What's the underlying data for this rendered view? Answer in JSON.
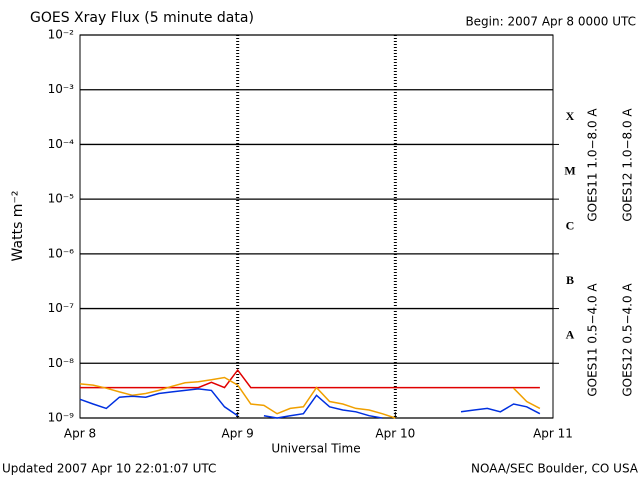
{
  "chart_data": {
    "type": "line",
    "title": "GOES Xray Flux (5 minute data)",
    "subtitle": "Begin:  2007 Apr 8 0000 UTC",
    "xlabel": "Universal Time",
    "ylabel": "Watts m⁻²",
    "footer_left": "Updated 2007 Apr 10 22:01:07 UTC",
    "footer_right": "NOAA/SEC Boulder, CO USA",
    "log_y": true,
    "grid": true,
    "xlim": [
      0,
      72
    ],
    "xticks": [
      {
        "value": 0,
        "label": "Apr 8"
      },
      {
        "value": 24,
        "label": "Apr 9"
      },
      {
        "value": 48,
        "label": "Apr 10"
      },
      {
        "value": 72,
        "label": "Apr 11"
      }
    ],
    "ylim": [
      1e-09,
      0.01
    ],
    "yticks": [
      {
        "value": 1e-09,
        "label": "10⁻⁹"
      },
      {
        "value": 1e-08,
        "label": "10⁻⁸"
      },
      {
        "value": 1e-07,
        "label": "10⁻⁷"
      },
      {
        "value": 1e-06,
        "label": "10⁻⁶"
      },
      {
        "value": 1e-05,
        "label": "10⁻⁵"
      },
      {
        "value": 0.0001,
        "label": "10⁻⁴"
      },
      {
        "value": 0.001,
        "label": "10⁻³"
      },
      {
        "value": 0.01,
        "label": "10⁻²"
      }
    ],
    "class_labels": [
      {
        "value": 1e-08,
        "label": "A"
      },
      {
        "value": 1e-07,
        "label": "B"
      },
      {
        "value": 1e-06,
        "label": "C"
      },
      {
        "value": 1e-05,
        "label": "M"
      },
      {
        "value": 0.0001,
        "label": "X"
      }
    ],
    "x": [
      0,
      2,
      4,
      6,
      8,
      10,
      12,
      14,
      16,
      18,
      20,
      22,
      24,
      26,
      28,
      30,
      32,
      34,
      36,
      38,
      40,
      42,
      44,
      46,
      48,
      50,
      52,
      54,
      56,
      58,
      60,
      62,
      64,
      66,
      68,
      70,
      72
    ],
    "series": [
      {
        "name": "GOES11 1.0−8.0 A",
        "color": "#8030c0",
        "values": [
          null,
          null,
          null,
          null,
          null,
          null,
          null,
          null,
          null,
          null,
          null,
          null,
          null,
          null,
          null,
          null,
          null,
          null,
          null,
          null,
          null,
          null,
          null,
          null,
          null,
          null,
          null,
          null,
          null,
          null,
          null,
          null,
          null,
          null,
          null,
          null,
          null
        ]
      },
      {
        "name": "GOES12 1.0−8.0 A",
        "color": "#e00000",
        "values": [
          3.6e-09,
          3.6e-09,
          3.6e-09,
          3.6e-09,
          3.6e-09,
          3.6e-09,
          3.6e-09,
          3.6e-09,
          3.6e-09,
          3.6e-09,
          4.5e-09,
          3.6e-09,
          7.5e-09,
          3.6e-09,
          3.6e-09,
          3.6e-09,
          3.6e-09,
          3.6e-09,
          3.6e-09,
          3.6e-09,
          3.6e-09,
          3.6e-09,
          3.6e-09,
          3.6e-09,
          3.6e-09,
          3.6e-09,
          3.6e-09,
          3.6e-09,
          3.6e-09,
          3.6e-09,
          3.6e-09,
          3.6e-09,
          3.6e-09,
          3.6e-09,
          3.6e-09,
          3.6e-09,
          null
        ]
      },
      {
        "name": "GOES11 0.5−4.0 A",
        "color": "#f0a000",
        "values": [
          4.2e-09,
          4e-09,
          3.5e-09,
          3e-09,
          2.6e-09,
          2.8e-09,
          3.2e-09,
          3.8e-09,
          4.4e-09,
          4.6e-09,
          5e-09,
          5.5e-09,
          4e-09,
          1.8e-09,
          1.7e-09,
          1.2e-09,
          1.5e-09,
          1.6e-09,
          3.6e-09,
          2e-09,
          1.8e-09,
          1.5e-09,
          1.4e-09,
          1.2e-09,
          1e-09,
          null,
          null,
          null,
          null,
          null,
          null,
          null,
          null,
          3.5e-09,
          2e-09,
          1.5e-09,
          null
        ]
      },
      {
        "name": "GOES12 0.5−4.0 A",
        "color": "#0030e0",
        "values": [
          2.2e-09,
          1.8e-09,
          1.5e-09,
          2.4e-09,
          2.5e-09,
          2.4e-09,
          2.8e-09,
          3e-09,
          3.2e-09,
          3.4e-09,
          3.2e-09,
          1.6e-09,
          1.1e-09,
          null,
          1.1e-09,
          1e-09,
          1.1e-09,
          1.2e-09,
          2.6e-09,
          1.6e-09,
          1.4e-09,
          1.3e-09,
          1.1e-09,
          1e-09,
          null,
          null,
          null,
          null,
          null,
          1.3e-09,
          1.4e-09,
          1.5e-09,
          1.3e-09,
          1.8e-09,
          1.6e-09,
          1.2e-09,
          null
        ]
      }
    ]
  }
}
